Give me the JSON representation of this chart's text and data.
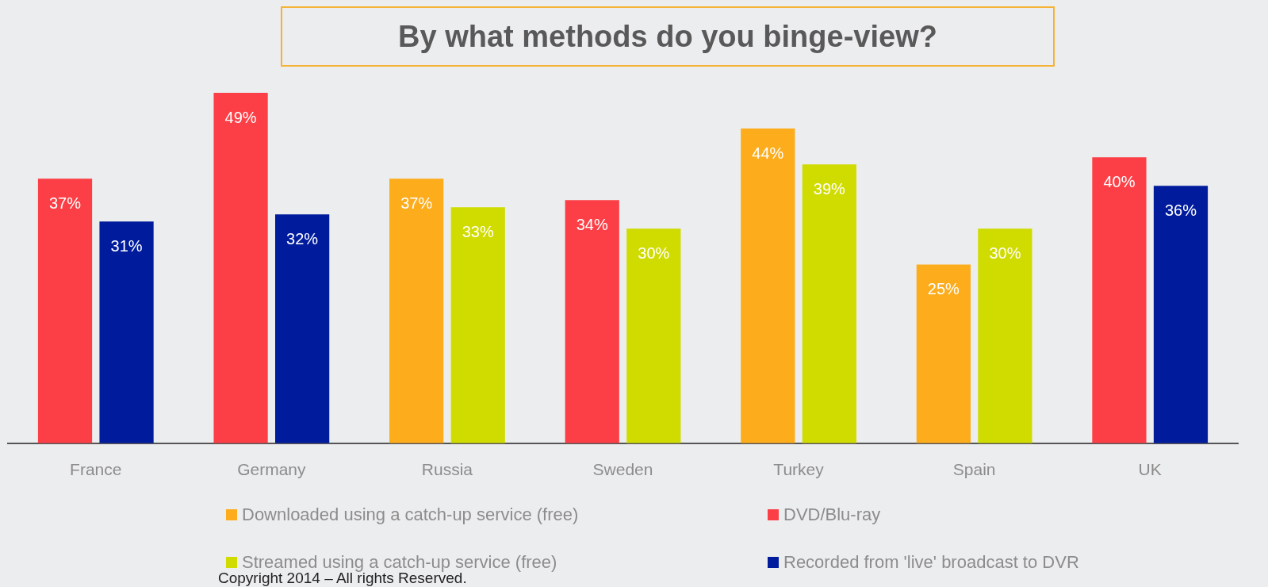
{
  "chart_data": {
    "type": "bar",
    "title": "By what methods do you binge-view?",
    "categories": [
      "France",
      "Germany",
      "Russia",
      "Sweden",
      "Turkey",
      "Spain",
      "UK"
    ],
    "series": [
      {
        "name": "Downloaded using a catch-up service (free)",
        "color": "#fdac1c",
        "values": [
          null,
          null,
          37,
          null,
          44,
          25,
          null
        ],
        "value_labels": [
          null,
          null,
          "37%",
          null,
          "44%",
          "25%",
          null
        ]
      },
      {
        "name": "DVD/Blu-ray",
        "color": "#fc3f46",
        "values": [
          37,
          49,
          null,
          34,
          null,
          null,
          40
        ],
        "value_labels": [
          "37%",
          "49%",
          null,
          "34%",
          null,
          null,
          "40%"
        ]
      },
      {
        "name": "Streamed using a catch-up service (free)",
        "color": "#d0dc00",
        "values": [
          null,
          null,
          33,
          30,
          39,
          30,
          null
        ],
        "value_labels": [
          null,
          null,
          "33%",
          "30%",
          "39%",
          "30%",
          null
        ]
      },
      {
        "name": "Recorded from 'live' broadcast to DVR",
        "color": "#001c9c",
        "values": [
          31,
          32,
          null,
          null,
          null,
          null,
          36
        ],
        "value_labels": [
          "31%",
          "32%",
          null,
          null,
          null,
          null,
          "36%"
        ]
      }
    ],
    "grid": false,
    "legend": "bottom",
    "tick_labels": "x",
    "annotations": [
      "Copyright 2014 – All rights Reserved."
    ]
  }
}
